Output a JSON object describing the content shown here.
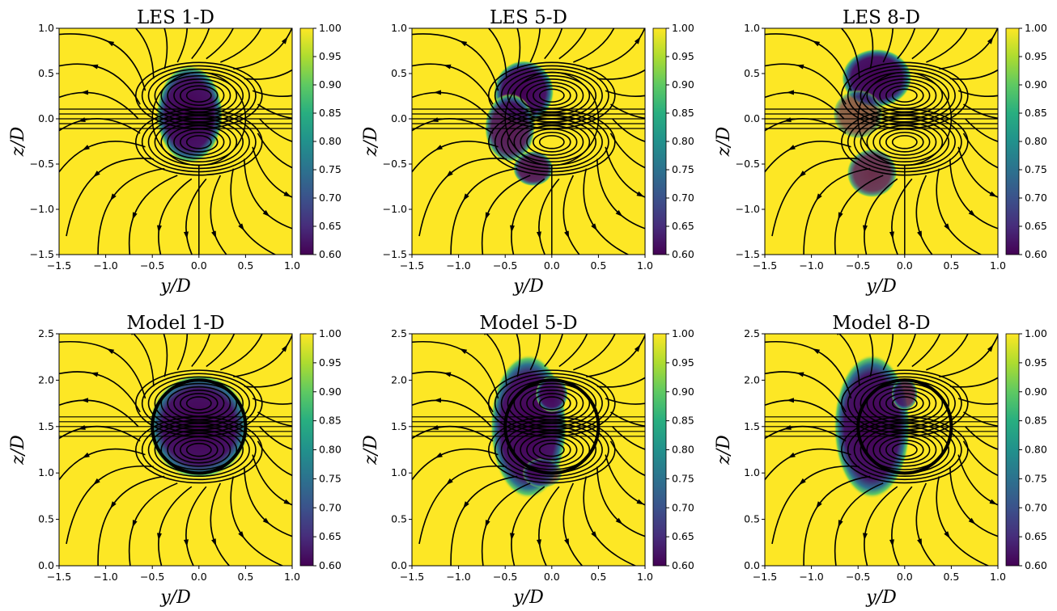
{
  "chart_data": [
    {
      "type": "heatmap",
      "title": "LES 1-D",
      "xlabel": "y/D",
      "ylabel": "z/D",
      "xlim": [
        -1.5,
        1.0
      ],
      "ylim": [
        -1.5,
        1.0
      ],
      "xticks": [
        "−1.5",
        "−1.0",
        "−0.5",
        "0.0",
        "0.5",
        "1.0"
      ],
      "yticks": [
        "−1.5",
        "−1.0",
        "−0.5",
        "0.0",
        "0.5",
        "1.0"
      ],
      "colorbar": {
        "range": [
          0.6,
          1.0
        ],
        "ticks": [
          "0.60",
          "0.65",
          "0.70",
          "0.75",
          "0.80",
          "0.85",
          "0.90",
          "0.95",
          "1.00"
        ]
      },
      "rotor": {
        "center": [
          0.0,
          0.0
        ],
        "radius": 0.5
      },
      "wake": [
        {
          "cy": -0.1,
          "cz": 0.05,
          "rx": 0.33,
          "rz": 0.5,
          "depth": 1.0
        }
      ],
      "overlay": "streamlines"
    },
    {
      "type": "heatmap",
      "title": "LES 5-D",
      "xlabel": "y/D",
      "ylabel": "z/D",
      "xlim": [
        -1.5,
        1.0
      ],
      "ylim": [
        -1.5,
        1.0
      ],
      "xticks": [
        "−1.5",
        "−1.0",
        "−0.5",
        "0.0",
        "0.5",
        "1.0"
      ],
      "yticks": [
        "−1.5",
        "−1.0",
        "−0.5",
        "0.0",
        "0.5",
        "1.0"
      ],
      "colorbar": {
        "range": [
          0.6,
          1.0
        ],
        "ticks": [
          "0.60",
          "0.65",
          "0.70",
          "0.75",
          "0.80",
          "0.85",
          "0.90",
          "0.95",
          "1.00"
        ]
      },
      "rotor": {
        "center": [
          0.0,
          0.0
        ],
        "radius": 0.5
      },
      "wake": [
        {
          "cy": -0.3,
          "cz": 0.3,
          "rx": 0.3,
          "rz": 0.32,
          "depth": 1.0
        },
        {
          "cy": -0.45,
          "cz": -0.1,
          "rx": 0.25,
          "rz": 0.35,
          "depth": 0.9
        },
        {
          "cy": -0.2,
          "cz": -0.55,
          "rx": 0.2,
          "rz": 0.18,
          "depth": 0.9
        }
      ],
      "overlay": "streamlines"
    },
    {
      "type": "heatmap",
      "title": "LES 8-D",
      "xlabel": "y/D",
      "ylabel": "z/D",
      "xlim": [
        -1.5,
        1.0
      ],
      "ylim": [
        -1.5,
        1.0
      ],
      "xticks": [
        "−1.5",
        "−1.0",
        "−0.5",
        "0.0",
        "0.5",
        "1.0"
      ],
      "yticks": [
        "−1.5",
        "−1.0",
        "−0.5",
        "0.0",
        "0.5",
        "1.0"
      ],
      "colorbar": {
        "range": [
          0.6,
          1.0
        ],
        "ticks": [
          "0.60",
          "0.65",
          "0.70",
          "0.75",
          "0.80",
          "0.85",
          "0.90",
          "0.95",
          "1.00"
        ]
      },
      "rotor": {
        "center": [
          0.0,
          0.0
        ],
        "radius": 0.5
      },
      "wake": [
        {
          "cy": -0.3,
          "cz": 0.45,
          "rx": 0.35,
          "rz": 0.3,
          "depth": 1.0
        },
        {
          "cy": -0.5,
          "cz": 0.05,
          "rx": 0.25,
          "rz": 0.25,
          "depth": 0.6
        },
        {
          "cy": -0.35,
          "cz": -0.6,
          "rx": 0.25,
          "rz": 0.25,
          "depth": 0.8
        }
      ],
      "overlay": "streamlines"
    },
    {
      "type": "heatmap",
      "title": "Model 1-D",
      "xlabel": "y/D",
      "ylabel": "z/D",
      "xlim": [
        -1.5,
        1.0
      ],
      "ylim": [
        0.0,
        2.5
      ],
      "xticks": [
        "−1.5",
        "−1.0",
        "−0.5",
        "0.0",
        "0.5",
        "1.0"
      ],
      "yticks": [
        "0.0",
        "0.5",
        "1.0",
        "1.5",
        "2.0",
        "2.5"
      ],
      "colorbar": {
        "range": [
          0.6,
          1.0
        ],
        "ticks": [
          "0.60",
          "0.65",
          "0.70",
          "0.75",
          "0.80",
          "0.85",
          "0.90",
          "0.95",
          "1.00"
        ]
      },
      "rotor": {
        "center": [
          0.0,
          1.5
        ],
        "radius": 0.5
      },
      "wake": [
        {
          "cy": 0.0,
          "cz": 1.5,
          "rx": 0.5,
          "rz": 0.52,
          "depth": 1.0
        }
      ],
      "overlay": "streamlines"
    },
    {
      "type": "heatmap",
      "title": "Model 5-D",
      "xlabel": "y/D",
      "ylabel": "z/D",
      "xlim": [
        -1.5,
        1.0
      ],
      "ylim": [
        0.0,
        2.5
      ],
      "xticks": [
        "−1.5",
        "−1.0",
        "−0.5",
        "0.0",
        "0.5",
        "1.0"
      ],
      "yticks": [
        "0.0",
        "0.5",
        "1.0",
        "1.5",
        "2.0",
        "2.5"
      ],
      "colorbar": {
        "range": [
          0.6,
          1.0
        ],
        "ticks": [
          "0.60",
          "0.65",
          "0.70",
          "0.75",
          "0.80",
          "0.85",
          "0.90",
          "0.95",
          "1.00"
        ]
      },
      "rotor": {
        "center": [
          0.0,
          1.5
        ],
        "radius": 0.5
      },
      "wake": [
        {
          "cy": -0.25,
          "cz": 1.5,
          "rx": 0.38,
          "rz": 0.72,
          "depth": 1.0
        },
        {
          "cy": 0.0,
          "cz": 1.85,
          "rx": 0.16,
          "rz": 0.18,
          "depth": 0.9
        },
        {
          "cy": -0.1,
          "cz": 1.0,
          "rx": 0.2,
          "rz": 0.15,
          "depth": 0.6
        }
      ],
      "overlay": "streamlines"
    },
    {
      "type": "heatmap",
      "title": "Model 8-D",
      "xlabel": "y/D",
      "ylabel": "z/D",
      "xlim": [
        -1.5,
        1.0
      ],
      "ylim": [
        0.0,
        2.5
      ],
      "xticks": [
        "−1.5",
        "−1.0",
        "−0.5",
        "0.0",
        "0.5",
        "1.0"
      ],
      "yticks": [
        "0.0",
        "0.5",
        "1.0",
        "1.5",
        "2.0",
        "2.5"
      ],
      "colorbar": {
        "range": [
          0.6,
          1.0
        ],
        "ticks": [
          "0.60",
          "0.65",
          "0.70",
          "0.75",
          "0.80",
          "0.85",
          "0.90",
          "0.95",
          "1.00"
        ]
      },
      "rotor": {
        "center": [
          0.0,
          1.5
        ],
        "radius": 0.5
      },
      "wake": [
        {
          "cy": -0.35,
          "cz": 1.5,
          "rx": 0.38,
          "rz": 0.72,
          "depth": 1.0
        },
        {
          "cy": 0.0,
          "cz": 1.85,
          "rx": 0.13,
          "rz": 0.16,
          "depth": 0.8
        }
      ],
      "overlay": "streamlines"
    }
  ],
  "colors": {
    "high": "#fde725",
    "mid": "#21918c",
    "low": "#440154",
    "streamline": "#000000"
  }
}
